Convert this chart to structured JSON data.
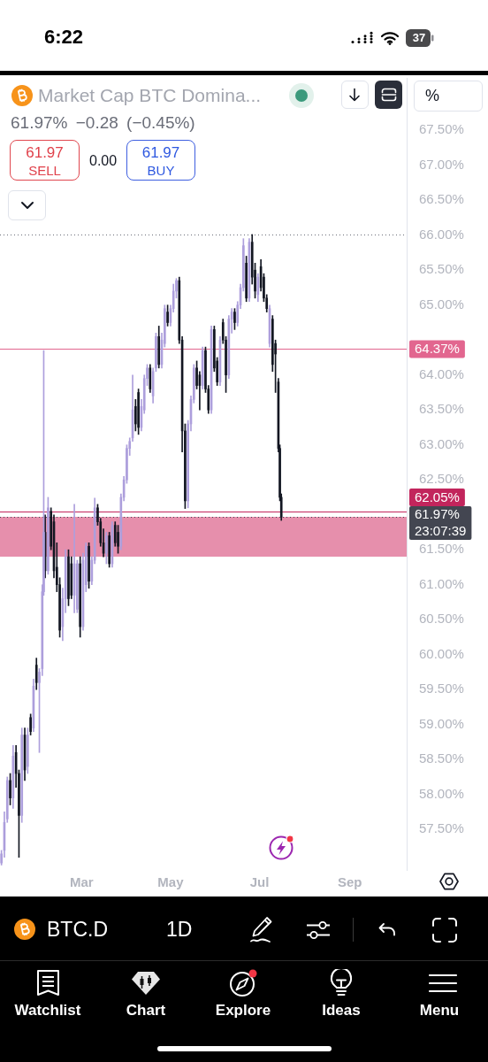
{
  "chart_data": {
    "type": "candlestick",
    "title": "Market Cap BTC Domina...",
    "subtitle": "61.97% −0.28 (−0.45%)",
    "annotations": [
      "6:22",
      "37",
      "%",
      "61.97",
      "SELL",
      "0.00",
      "61.97",
      "BUY",
      "BTC.D",
      "1D",
      "Watchlist",
      "Chart",
      "Explore",
      "Ideas",
      "Menu"
    ],
    "series": [
      {
        "color": "#ad9fdc",
        "x": [
          "--01-05",
          "--01-07",
          "--01-09",
          "--01-13",
          "--01-19",
          "--01-23",
          "--01-27",
          "--01-31",
          "--02-02",
          "--02-03",
          "--02-06",
          "--02-16",
          "--02-18",
          "--02-24",
          "--02-26",
          "--03-02",
          "--03-04",
          "--03-08",
          "--03-10",
          "--03-18",
          "--03-22",
          "--03-28",
          "--03-30",
          "--04-01",
          "--04-03",
          "--04-05",
          "--04-11",
          "--04-13",
          "--04-15",
          "--04-19",
          "--04-21",
          "--04-25",
          "--04-27",
          "--05-01",
          "--05-03",
          "--05-05",
          "--05-13",
          "--05-15",
          "--05-17",
          "--05-23",
          "--05-29",
          "--06-04",
          "--06-10",
          "--06-12",
          "--06-16",
          "--06-18",
          "--06-20",
          "--06-24",
          "--06-30",
          "--07-08"
        ],
        "ohlc": [
          [
            57.02,
            57.2,
            56.99,
            57.15
          ],
          [
            57.2,
            57.75,
            57.1,
            57.6
          ],
          [
            57.65,
            58.25,
            57.6,
            58.2
          ],
          [
            57.95,
            58.7,
            57.8,
            58.55
          ],
          [
            57.7,
            58.95,
            57.6,
            58.85
          ],
          [
            58.4,
            58.95,
            58.3,
            58.85
          ],
          [
            58.95,
            59.65,
            58.9,
            59.55
          ],
          [
            59.6,
            59.8,
            58.6,
            59.75
          ],
          [
            59.8,
            61.0,
            59.7,
            60.9
          ],
          [
            60.9,
            64.35,
            60.85,
            61.75
          ],
          [
            61.2,
            62.25,
            61.15,
            62.1
          ],
          [
            60.4,
            60.95,
            60.2,
            60.8
          ],
          [
            60.8,
            61.5,
            60.6,
            61.4
          ],
          [
            60.85,
            62.15,
            60.6,
            61.3
          ],
          [
            60.65,
            61.35,
            60.6,
            61.3
          ],
          [
            60.4,
            61.45,
            60.35,
            61.35
          ],
          [
            61.0,
            61.6,
            60.9,
            61.55
          ],
          [
            61.05,
            61.4,
            61.0,
            61.35
          ],
          [
            61.35,
            62.24,
            61.3,
            62.1
          ],
          [
            61.45,
            61.75,
            61.3,
            61.7
          ],
          [
            61.3,
            61.9,
            61.25,
            61.85
          ],
          [
            61.55,
            62.3,
            61.5,
            62.25
          ],
          [
            62.25,
            62.55,
            62.2,
            62.5
          ],
          [
            62.5,
            63.0,
            62.45,
            62.95
          ],
          [
            62.95,
            63.1,
            62.85,
            63.05
          ],
          [
            63.1,
            64.0,
            63.05,
            63.5
          ],
          [
            63.25,
            63.65,
            63.2,
            63.55
          ],
          [
            63.5,
            64.0,
            63.45,
            63.95
          ],
          [
            63.95,
            64.15,
            63.85,
            64.1
          ],
          [
            63.7,
            64.1,
            63.6,
            64.05
          ],
          [
            64.1,
            64.6,
            64.05,
            64.55
          ],
          [
            64.15,
            64.6,
            64.1,
            64.5
          ],
          [
            64.45,
            65.0,
            64.4,
            64.95
          ],
          [
            64.75,
            65.0,
            64.7,
            64.95
          ],
          [
            64.95,
            65.3,
            64.9,
            65.2
          ],
          [
            65.2,
            65.38,
            65.1,
            65.35
          ],
          [
            62.2,
            63.35,
            62.1,
            63.3
          ],
          [
            63.3,
            63.7,
            63.2,
            63.65
          ],
          [
            63.65,
            64.15,
            63.6,
            64.1
          ],
          [
            63.85,
            64.4,
            63.8,
            64.35
          ],
          [
            63.5,
            64.7,
            63.45,
            64.65
          ],
          [
            63.9,
            64.55,
            63.85,
            64.5
          ],
          [
            64.0,
            64.85,
            63.95,
            64.8
          ],
          [
            64.8,
            64.95,
            64.6,
            64.9
          ],
          [
            64.75,
            65.05,
            64.7,
            65.0
          ],
          [
            65.0,
            65.3,
            64.95,
            65.25
          ],
          [
            65.25,
            65.95,
            65.2,
            65.85
          ],
          [
            65.1,
            65.95,
            65.05,
            65.9
          ],
          [
            65.15,
            65.45,
            65.05,
            65.4
          ],
          [
            64.45,
            65.0,
            64.4,
            64.95
          ]
        ]
      },
      {
        "color": "#131722",
        "x": [
          "--01-11",
          "--01-15",
          "--01-17",
          "--01-21",
          "--01-25",
          "--01-29",
          "--02-04",
          "--02-08",
          "--02-10",
          "--02-12",
          "--02-14",
          "--02-20",
          "--02-22",
          "--02-28",
          "--03-06",
          "--03-12",
          "--03-14",
          "--03-16",
          "--03-20",
          "--03-24",
          "--03-26",
          "--04-07",
          "--04-09",
          "--04-17",
          "--04-23",
          "--04-29",
          "--05-07",
          "--05-09",
          "--05-11",
          "--05-19",
          "--05-21",
          "--05-25",
          "--05-27",
          "--05-31",
          "--06-02",
          "--06-06",
          "--06-08",
          "--06-14",
          "--06-22",
          "--06-26",
          "--06-28",
          "--07-02",
          "--07-04",
          "--07-06",
          "--07-10",
          "--07-12",
          "--07-14",
          "--07-15",
          "--07-16"
        ],
        "ohlc": [
          [
            58.2,
            58.3,
            57.85,
            57.95
          ],
          [
            58.6,
            58.7,
            58.1,
            58.3
          ],
          [
            58.3,
            58.35,
            57.1,
            57.7
          ],
          [
            58.85,
            58.95,
            58.2,
            58.35
          ],
          [
            59.1,
            59.15,
            58.85,
            58.9
          ],
          [
            59.85,
            59.95,
            59.5,
            59.6
          ],
          [
            61.75,
            62.0,
            61.1,
            61.2
          ],
          [
            62.05,
            62.1,
            61.5,
            61.55
          ],
          [
            61.9,
            62.0,
            61.1,
            61.2
          ],
          [
            61.25,
            61.6,
            60.9,
            61.0
          ],
          [
            61.0,
            61.1,
            60.25,
            60.35
          ],
          [
            61.4,
            61.5,
            60.7,
            60.8
          ],
          [
            61.3,
            61.4,
            60.8,
            60.85
          ],
          [
            61.3,
            61.4,
            60.25,
            60.4
          ],
          [
            61.55,
            61.6,
            60.95,
            61.05
          ],
          [
            62.1,
            62.15,
            61.85,
            61.9
          ],
          [
            61.9,
            61.95,
            61.55,
            61.6
          ],
          [
            61.6,
            61.8,
            61.4,
            61.45
          ],
          [
            61.7,
            61.75,
            61.25,
            61.3
          ],
          [
            61.85,
            61.9,
            61.55,
            61.6
          ],
          [
            61.75,
            61.85,
            61.45,
            61.55
          ],
          [
            63.55,
            63.65,
            63.2,
            63.3
          ],
          [
            63.75,
            63.8,
            63.15,
            63.25
          ],
          [
            64.1,
            64.15,
            63.75,
            63.8
          ],
          [
            64.55,
            64.7,
            64.1,
            64.15
          ],
          [
            64.9,
            65.0,
            64.7,
            64.75
          ],
          [
            65.35,
            65.4,
            64.45,
            64.5
          ],
          [
            64.5,
            64.55,
            62.9,
            63.2
          ],
          [
            63.2,
            63.3,
            62.09,
            62.2
          ],
          [
            64.1,
            64.2,
            63.8,
            63.85
          ],
          [
            64.0,
            64.05,
            63.5,
            63.85
          ],
          [
            64.35,
            64.4,
            63.75,
            63.8
          ],
          [
            63.8,
            63.85,
            63.45,
            63.5
          ],
          [
            64.65,
            64.7,
            64.05,
            64.1
          ],
          [
            64.2,
            64.25,
            63.85,
            63.9
          ],
          [
            64.75,
            64.8,
            64.45,
            64.5
          ],
          [
            64.5,
            64.55,
            63.75,
            64.0
          ],
          [
            64.9,
            64.95,
            64.65,
            64.75
          ],
          [
            65.6,
            65.7,
            65.05,
            65.1
          ],
          [
            65.9,
            66.01,
            65.3,
            65.4
          ],
          [
            65.5,
            65.6,
            65.1,
            65.2
          ],
          [
            65.55,
            65.65,
            65.2,
            65.25
          ],
          [
            65.4,
            65.45,
            65.05,
            65.1
          ],
          [
            65.1,
            65.15,
            64.9,
            64.95
          ],
          [
            64.8,
            64.85,
            64.05,
            64.15
          ],
          [
            64.45,
            64.5,
            63.75,
            64.3
          ],
          [
            63.9,
            63.95,
            62.9,
            62.95
          ],
          [
            62.95,
            63.0,
            62.2,
            62.25
          ],
          [
            62.25,
            62.3,
            61.92,
            61.97
          ]
        ]
      }
    ],
    "xlim": [
      "--01-04",
      "--10-10"
    ],
    "xticks": [
      {
        "value": "--03-01",
        "label": "Mar"
      },
      {
        "value": "--05-01",
        "label": "May"
      },
      {
        "value": "--07-01",
        "label": "Jul"
      },
      {
        "value": "--09-01",
        "label": "Sep"
      }
    ],
    "ylim": [
      56.92,
      68.25
    ],
    "yticks": [
      {
        "value": 57.5,
        "label": "57.50%"
      },
      {
        "value": 58,
        "label": "58.00%"
      },
      {
        "value": 58.5,
        "label": "58.50%"
      },
      {
        "value": 59,
        "label": "59.00%"
      },
      {
        "value": 59.5,
        "label": "59.50%"
      },
      {
        "value": 60,
        "label": "60.00%"
      },
      {
        "value": 60.5,
        "label": "60.50%"
      },
      {
        "value": 61,
        "label": "61.00%"
      },
      {
        "value": 61.5,
        "label": "61.50%"
      },
      {
        "value": 62.5,
        "label": "62.50%"
      },
      {
        "value": 63,
        "label": "63.00%"
      },
      {
        "value": 63.5,
        "label": "63.50%"
      },
      {
        "value": 64,
        "label": "64.00%"
      },
      {
        "value": 65,
        "label": "65.00%"
      },
      {
        "value": 65.5,
        "label": "65.50%"
      },
      {
        "value": 66,
        "label": "66.00%"
      },
      {
        "value": 66.5,
        "label": "66.50%"
      },
      {
        "value": 67,
        "label": "67.00%"
      },
      {
        "value": 67.5,
        "label": "67.50%"
      }
    ],
    "bands": [
      {
        "axis": "y",
        "from": 61.4,
        "to": 61.97,
        "color": "#e68fac"
      }
    ],
    "ref_lines": [
      {
        "axis": "y",
        "value": 66.01,
        "color": "#6a6d78",
        "line_style": "dotted"
      },
      {
        "axis": "y",
        "value": 64.37,
        "label": "64.37%",
        "color": "#e2668f"
      },
      {
        "axis": "y",
        "value": 62.05,
        "label": "62.05%",
        "color": "#c2255c"
      },
      {
        "axis": "y",
        "value": 61.97,
        "label": "61.97%\n23:07:39",
        "color": "#434651",
        "line_style": "dotted"
      }
    ]
  }
}
